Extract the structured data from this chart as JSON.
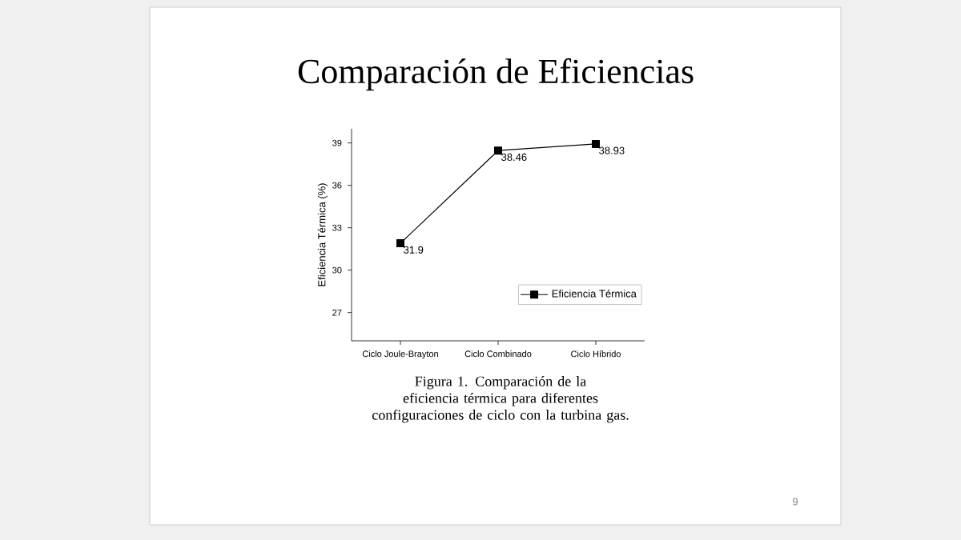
{
  "chart_data": {
    "type": "line",
    "title": "Comparación de Eficiencias",
    "ylabel": "Eficiencia Térmica (%)",
    "categories": [
      "Ciclo Joule-Brayton",
      "Ciclo Combinado",
      "Ciclo Híbrido"
    ],
    "series": [
      {
        "name": "Eficiencia Térmica",
        "color": "#000000",
        "values": [
          31.9,
          38.46,
          38.93
        ]
      }
    ],
    "ylim": [
      25,
      40
    ],
    "yticks": [
      27,
      30,
      33,
      36,
      39
    ],
    "marker": "square",
    "line_style": "solid",
    "legend": "bottom right",
    "data_labels": true,
    "annotations": [
      "Figura 1. Comparación de la eficiencia térmica para diferentes configuraciones de ciclo con la turbina gas.",
      "9"
    ]
  }
}
